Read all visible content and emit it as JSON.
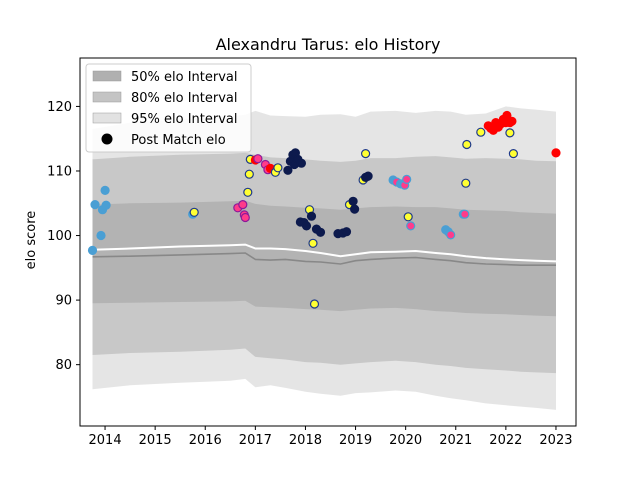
{
  "chart_data": {
    "type": "scatter",
    "title": "Alexandru Tarus: elo History",
    "xlabel": "",
    "ylabel": "elo score",
    "xlim": [
      2013.5,
      2023.4
    ],
    "ylim": [
      70.5,
      127.5
    ],
    "xticks": [
      2014,
      2015,
      2016,
      2017,
      2018,
      2019,
      2020,
      2021,
      2022,
      2023
    ],
    "yticks": [
      80,
      90,
      100,
      110,
      120
    ],
    "legend": {
      "position": "top-left",
      "entries": [
        {
          "label": "50% elo Interval",
          "kind": "band",
          "color": "#b0b0b0"
        },
        {
          "label": "80% elo Interval",
          "kind": "band",
          "color": "#c4c4c4"
        },
        {
          "label": "95% elo Interval",
          "kind": "band",
          "color": "#e2e2e2"
        },
        {
          "label": "Post Match elo",
          "kind": "marker",
          "color": "#000000"
        }
      ]
    },
    "bands": {
      "x": [
        2013.75,
        2014.5,
        2015.5,
        2016.5,
        2016.8,
        2017.0,
        2017.3,
        2017.6,
        2018.0,
        2018.3,
        2018.7,
        2019.0,
        2019.3,
        2019.8,
        2020.2,
        2020.6,
        2020.9,
        2021.2,
        2021.6,
        2022.0,
        2022.3,
        2022.6,
        2023.0
      ],
      "p95": {
        "upper": [
          116.5,
          117.5,
          118.0,
          118.5,
          118.7,
          119.3,
          118.6,
          118.5,
          118.4,
          118.7,
          118.8,
          118.4,
          119.2,
          119.3,
          119.0,
          119.3,
          119.2,
          118.7,
          118.9,
          120.0,
          119.7,
          119.5,
          119.2
        ],
        "lower": [
          76.2,
          76.8,
          77.2,
          77.5,
          77.8,
          76.5,
          76.8,
          76.4,
          75.8,
          75.5,
          75.2,
          75.6,
          75.7,
          76.0,
          75.8,
          75.2,
          74.8,
          74.5,
          74.0,
          73.7,
          73.5,
          73.3,
          73.0
        ]
      },
      "p80": {
        "upper": [
          111.8,
          112.2,
          112.5,
          112.7,
          112.8,
          112.5,
          112.1,
          112.0,
          111.8,
          111.6,
          111.4,
          111.6,
          112.0,
          112.0,
          112.2,
          112.3,
          112.1,
          111.9,
          112.0,
          111.9,
          111.8,
          111.6,
          111.5
        ],
        "lower": [
          81.5,
          81.8,
          82.0,
          82.3,
          82.5,
          81.2,
          81.0,
          80.8,
          80.4,
          80.3,
          80.0,
          80.2,
          80.4,
          80.6,
          80.4,
          80.0,
          79.8,
          79.5,
          79.3,
          79.1,
          78.9,
          78.8,
          78.7
        ]
      },
      "p50": {
        "upper": [
          104.8,
          105.0,
          105.1,
          105.3,
          105.4,
          104.9,
          104.6,
          104.5,
          104.3,
          104.2,
          104.0,
          104.2,
          104.4,
          104.5,
          104.4,
          104.4,
          104.2,
          104.0,
          103.9,
          103.8,
          103.6,
          103.5,
          103.4
        ],
        "lower": [
          89.5,
          89.6,
          89.7,
          89.8,
          89.9,
          89.0,
          88.9,
          88.8,
          88.6,
          88.5,
          88.3,
          88.5,
          88.7,
          88.8,
          88.6,
          88.3,
          88.2,
          88.0,
          87.9,
          87.8,
          87.7,
          87.6,
          87.5
        ]
      }
    },
    "series": [
      {
        "kind": "line",
        "color": "#ffffff",
        "x": [
          2013.75,
          2014.5,
          2015.5,
          2016.5,
          2016.8,
          2017.0,
          2017.3,
          2017.6,
          2018.0,
          2018.3,
          2018.7,
          2019.0,
          2019.3,
          2019.8,
          2020.2,
          2020.6,
          2020.9,
          2021.2,
          2021.6,
          2022.0,
          2022.3,
          2022.6,
          2023.0
        ],
        "y": [
          97.8,
          98.0,
          98.3,
          98.5,
          98.6,
          98.0,
          98.0,
          97.9,
          97.6,
          97.3,
          96.8,
          97.1,
          97.4,
          97.5,
          97.6,
          97.3,
          97.1,
          96.8,
          96.5,
          96.3,
          96.2,
          96.1,
          96.0
        ]
      },
      {
        "kind": "line",
        "color": "#888888",
        "x": [
          2013.75,
          2014.5,
          2015.5,
          2016.5,
          2016.8,
          2017.0,
          2017.3,
          2017.6,
          2018.0,
          2018.3,
          2018.7,
          2019.0,
          2019.3,
          2019.8,
          2020.2,
          2020.6,
          2020.9,
          2021.2,
          2021.6,
          2022.0,
          2022.3,
          2022.6,
          2023.0
        ],
        "y": [
          96.7,
          96.8,
          97.0,
          97.2,
          97.3,
          96.3,
          96.2,
          96.3,
          96.0,
          95.9,
          95.6,
          96.1,
          96.3,
          96.5,
          96.6,
          96.3,
          96.1,
          95.8,
          95.6,
          95.5,
          95.4,
          95.4,
          95.4
        ]
      }
    ],
    "points": [
      {
        "x": 2013.75,
        "y": 97.7,
        "fill": "#4a9fd4",
        "edge": "#4a9fd4"
      },
      {
        "x": 2013.8,
        "y": 104.8,
        "fill": "#4a9fd4",
        "edge": "#4a9fd4"
      },
      {
        "x": 2013.92,
        "y": 100.0,
        "fill": "#4a9fd4",
        "edge": "#4a9fd4"
      },
      {
        "x": 2013.95,
        "y": 104.0,
        "fill": "#4a9fd4",
        "edge": "#4a9fd4"
      },
      {
        "x": 2014.0,
        "y": 107.0,
        "fill": "#4a9fd4",
        "edge": "#4a9fd4"
      },
      {
        "x": 2014.02,
        "y": 104.7,
        "fill": "#4a9fd4",
        "edge": "#4a9fd4"
      },
      {
        "x": 2015.75,
        "y": 103.3,
        "fill": "#4a9fd4",
        "edge": "#4a9fd4"
      },
      {
        "x": 2015.78,
        "y": 103.6,
        "fill": "#ffff33",
        "edge": "#1f3a8a"
      },
      {
        "x": 2016.65,
        "y": 104.3,
        "fill": "#ff3b8a",
        "edge": "#8a1b9a"
      },
      {
        "x": 2016.75,
        "y": 104.8,
        "fill": "#ff3b8a",
        "edge": "#8a1b9a"
      },
      {
        "x": 2016.78,
        "y": 103.2,
        "fill": "#ff3b8a",
        "edge": "#8a1b9a"
      },
      {
        "x": 2016.8,
        "y": 102.8,
        "fill": "#ff3b8a",
        "edge": "#8a1b9a"
      },
      {
        "x": 2016.85,
        "y": 106.7,
        "fill": "#ffff33",
        "edge": "#1f3a8a"
      },
      {
        "x": 2016.88,
        "y": 109.5,
        "fill": "#ffff33",
        "edge": "#1f3a8a"
      },
      {
        "x": 2016.9,
        "y": 111.8,
        "fill": "#ffff33",
        "edge": "#1f3a8a"
      },
      {
        "x": 2017.0,
        "y": 111.7,
        "fill": "#ff0000",
        "edge": "#ff0000"
      },
      {
        "x": 2017.05,
        "y": 111.9,
        "fill": "#ff3b8a",
        "edge": "#8a1b9a"
      },
      {
        "x": 2017.2,
        "y": 111.0,
        "fill": "#ff3b8a",
        "edge": "#8a1b9a"
      },
      {
        "x": 2017.25,
        "y": 110.2,
        "fill": "#ff3b8a",
        "edge": "#8a1b9a"
      },
      {
        "x": 2017.3,
        "y": 110.4,
        "fill": "#ff0000",
        "edge": "#ff0000"
      },
      {
        "x": 2017.4,
        "y": 109.8,
        "fill": "#ffff33",
        "edge": "#1f3a8a"
      },
      {
        "x": 2017.45,
        "y": 110.5,
        "fill": "#ffff33",
        "edge": "#1f3a8a"
      },
      {
        "x": 2017.65,
        "y": 110.1,
        "fill": "#0d1a4d",
        "edge": "#0d1a4d"
      },
      {
        "x": 2017.7,
        "y": 111.5,
        "fill": "#0d1a4d",
        "edge": "#0d1a4d"
      },
      {
        "x": 2017.75,
        "y": 112.5,
        "fill": "#0d1a4d",
        "edge": "#0d1a4d"
      },
      {
        "x": 2017.78,
        "y": 111.0,
        "fill": "#0d1a4d",
        "edge": "#0d1a4d"
      },
      {
        "x": 2017.8,
        "y": 112.8,
        "fill": "#0d1a4d",
        "edge": "#0d1a4d"
      },
      {
        "x": 2017.85,
        "y": 111.8,
        "fill": "#0d1a4d",
        "edge": "#0d1a4d"
      },
      {
        "x": 2017.92,
        "y": 111.2,
        "fill": "#0d1a4d",
        "edge": "#0d1a4d"
      },
      {
        "x": 2017.9,
        "y": 102.1,
        "fill": "#0d1a4d",
        "edge": "#0d1a4d"
      },
      {
        "x": 2017.97,
        "y": 102.0,
        "fill": "#0d1a4d",
        "edge": "#0d1a4d"
      },
      {
        "x": 2018.02,
        "y": 101.5,
        "fill": "#0d1a4d",
        "edge": "#0d1a4d"
      },
      {
        "x": 2018.08,
        "y": 104.0,
        "fill": "#ffff33",
        "edge": "#1f3a8a"
      },
      {
        "x": 2018.12,
        "y": 103.0,
        "fill": "#0d1a4d",
        "edge": "#0d1a4d"
      },
      {
        "x": 2018.15,
        "y": 98.8,
        "fill": "#ffff33",
        "edge": "#1f3a8a"
      },
      {
        "x": 2018.18,
        "y": 89.4,
        "fill": "#ffff33",
        "edge": "#1f3a8a"
      },
      {
        "x": 2018.22,
        "y": 101.0,
        "fill": "#0d1a4d",
        "edge": "#0d1a4d"
      },
      {
        "x": 2018.3,
        "y": 100.5,
        "fill": "#0d1a4d",
        "edge": "#0d1a4d"
      },
      {
        "x": 2018.65,
        "y": 100.3,
        "fill": "#0d1a4d",
        "edge": "#0d1a4d"
      },
      {
        "x": 2018.75,
        "y": 100.4,
        "fill": "#0d1a4d",
        "edge": "#0d1a4d"
      },
      {
        "x": 2018.82,
        "y": 100.6,
        "fill": "#0d1a4d",
        "edge": "#0d1a4d"
      },
      {
        "x": 2018.88,
        "y": 104.8,
        "fill": "#ffff33",
        "edge": "#1f3a8a"
      },
      {
        "x": 2018.95,
        "y": 105.3,
        "fill": "#0d1a4d",
        "edge": "#0d1a4d"
      },
      {
        "x": 2018.98,
        "y": 104.1,
        "fill": "#0d1a4d",
        "edge": "#0d1a4d"
      },
      {
        "x": 2019.15,
        "y": 108.6,
        "fill": "#ffff33",
        "edge": "#1f3a8a"
      },
      {
        "x": 2019.2,
        "y": 109.0,
        "fill": "#0d1a4d",
        "edge": "#0d1a4d"
      },
      {
        "x": 2019.25,
        "y": 109.2,
        "fill": "#0d1a4d",
        "edge": "#0d1a4d"
      },
      {
        "x": 2019.2,
        "y": 112.7,
        "fill": "#ffff33",
        "edge": "#1f3a8a"
      },
      {
        "x": 2019.75,
        "y": 108.6,
        "fill": "#4a9fd4",
        "edge": "#4a9fd4"
      },
      {
        "x": 2019.82,
        "y": 108.3,
        "fill": "#ff3b8a",
        "edge": "#4a9fd4"
      },
      {
        "x": 2019.9,
        "y": 108.0,
        "fill": "#4a9fd4",
        "edge": "#4a9fd4"
      },
      {
        "x": 2019.98,
        "y": 107.8,
        "fill": "#ff3b8a",
        "edge": "#4a9fd4"
      },
      {
        "x": 2020.02,
        "y": 108.7,
        "fill": "#ff3b8a",
        "edge": "#4a9fd4"
      },
      {
        "x": 2020.05,
        "y": 102.9,
        "fill": "#ffff33",
        "edge": "#1f3a8a"
      },
      {
        "x": 2020.1,
        "y": 101.5,
        "fill": "#ff3b8a",
        "edge": "#4a9fd4"
      },
      {
        "x": 2020.8,
        "y": 100.9,
        "fill": "#4a9fd4",
        "edge": "#4a9fd4"
      },
      {
        "x": 2020.85,
        "y": 100.6,
        "fill": "#4a9fd4",
        "edge": "#4a9fd4"
      },
      {
        "x": 2020.9,
        "y": 100.1,
        "fill": "#ff3b8a",
        "edge": "#4a9fd4"
      },
      {
        "x": 2021.15,
        "y": 103.3,
        "fill": "#4a9fd4",
        "edge": "#4a9fd4"
      },
      {
        "x": 2021.18,
        "y": 103.3,
        "fill": "#ff3b8a",
        "edge": "#4a9fd4"
      },
      {
        "x": 2021.2,
        "y": 108.1,
        "fill": "#ffff33",
        "edge": "#1f3a8a"
      },
      {
        "x": 2021.22,
        "y": 114.1,
        "fill": "#ffff33",
        "edge": "#1f3a8a"
      },
      {
        "x": 2021.5,
        "y": 116.0,
        "fill": "#ffff33",
        "edge": "#1f3a8a"
      },
      {
        "x": 2021.65,
        "y": 117.0,
        "fill": "#ff0000",
        "edge": "#ff0000"
      },
      {
        "x": 2021.7,
        "y": 116.6,
        "fill": "#ff0000",
        "edge": "#ff0000"
      },
      {
        "x": 2021.75,
        "y": 116.3,
        "fill": "#ff0000",
        "edge": "#ff0000"
      },
      {
        "x": 2021.8,
        "y": 117.5,
        "fill": "#ff0000",
        "edge": "#ff0000"
      },
      {
        "x": 2021.85,
        "y": 116.8,
        "fill": "#ff0000",
        "edge": "#ff0000"
      },
      {
        "x": 2021.9,
        "y": 117.3,
        "fill": "#ff0000",
        "edge": "#ff0000"
      },
      {
        "x": 2021.95,
        "y": 118.0,
        "fill": "#ff0000",
        "edge": "#ff0000"
      },
      {
        "x": 2022.0,
        "y": 117.5,
        "fill": "#ff0000",
        "edge": "#ff0000"
      },
      {
        "x": 2022.02,
        "y": 118.6,
        "fill": "#ff0000",
        "edge": "#ff0000"
      },
      {
        "x": 2022.05,
        "y": 117.8,
        "fill": "#ff0000",
        "edge": "#ff0000"
      },
      {
        "x": 2022.08,
        "y": 117.5,
        "fill": "#ff0000",
        "edge": "#ff0000"
      },
      {
        "x": 2022.12,
        "y": 117.7,
        "fill": "#ff0000",
        "edge": "#ff0000"
      },
      {
        "x": 2022.08,
        "y": 115.9,
        "fill": "#ffff33",
        "edge": "#1f3a8a"
      },
      {
        "x": 2022.15,
        "y": 112.7,
        "fill": "#ffff33",
        "edge": "#1f3a8a"
      },
      {
        "x": 2023.0,
        "y": 112.8,
        "fill": "#ff0000",
        "edge": "#ff0000"
      }
    ]
  }
}
